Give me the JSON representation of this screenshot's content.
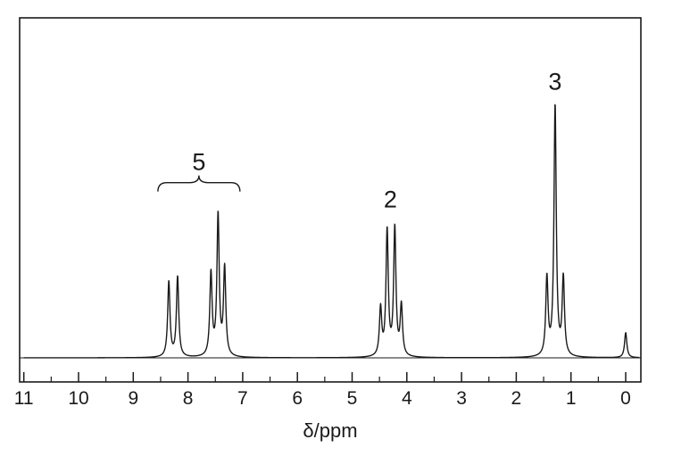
{
  "chart_data": {
    "type": "line",
    "xlabel": "δ/ppm",
    "xlim": [
      11,
      -0.25
    ],
    "x_reversed": true,
    "ylim": [
      0,
      1
    ],
    "grid": false,
    "x_ticks": [
      11,
      10,
      9,
      8,
      7,
      6,
      5,
      4,
      3,
      2,
      1,
      0
    ],
    "peaks": [
      {
        "x": 8.35,
        "y": 0.3
      },
      {
        "x": 8.19,
        "y": 0.32
      },
      {
        "x": 7.58,
        "y": 0.33
      },
      {
        "x": 7.45,
        "y": 0.56
      },
      {
        "x": 7.33,
        "y": 0.35
      },
      {
        "x": 4.48,
        "y": 0.19
      },
      {
        "x": 4.36,
        "y": 0.5
      },
      {
        "x": 4.22,
        "y": 0.51
      },
      {
        "x": 4.1,
        "y": 0.2
      },
      {
        "x": 1.44,
        "y": 0.31
      },
      {
        "x": 1.29,
        "y": 1.0
      },
      {
        "x": 1.14,
        "y": 0.31
      },
      {
        "x": 0.0,
        "y": 0.1
      }
    ],
    "annotations": [
      {
        "text": "5",
        "x": 7.8,
        "bracket_from": 8.55,
        "bracket_to": 7.05,
        "y": 0.72
      },
      {
        "text": "2",
        "x": 4.3,
        "y": 0.6
      },
      {
        "text": "3",
        "x": 1.29,
        "y": 1.07
      }
    ]
  }
}
